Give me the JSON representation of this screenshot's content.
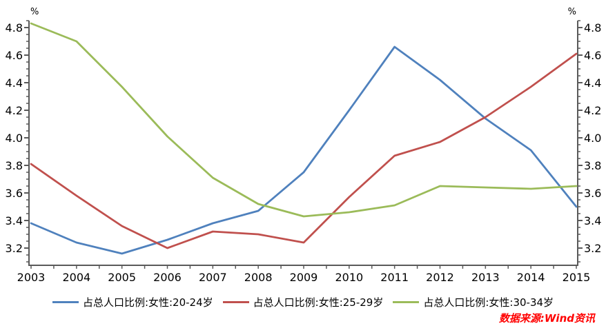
{
  "chart_data": {
    "type": "line",
    "title": "",
    "x": [
      2003,
      2004,
      2005,
      2006,
      2007,
      2008,
      2009,
      2010,
      2011,
      2012,
      2013,
      2014,
      2015
    ],
    "series": [
      {
        "name": "占总人口比例:女性:20-24岁",
        "color": "#4F81BD",
        "values": [
          3.38,
          3.24,
          3.16,
          3.26,
          3.38,
          3.47,
          3.75,
          4.2,
          4.66,
          4.42,
          4.14,
          3.91,
          3.5
        ]
      },
      {
        "name": "占总人口比例:女性:25-29岁",
        "color": "#C0504D",
        "values": [
          3.81,
          3.58,
          3.36,
          3.2,
          3.32,
          3.3,
          3.24,
          3.57,
          3.87,
          3.97,
          4.15,
          4.37,
          4.61
        ]
      },
      {
        "name": "占总人口比例:女性:30-34岁",
        "color": "#9BBB59",
        "values": [
          4.83,
          4.7,
          4.37,
          4.01,
          3.71,
          3.52,
          3.43,
          3.46,
          3.51,
          3.65,
          3.64,
          3.63,
          3.65
        ]
      }
    ],
    "y_axis": {
      "unit_label": "%",
      "min": 3.075,
      "max": 4.85,
      "major_tick_start": 3.2,
      "major_tick_end": 4.8,
      "major_tick_step": 0.2,
      "minor_tick_step": 0.05,
      "sides": [
        "left",
        "right"
      ]
    },
    "x_axis": {
      "tick_step_years": 0.5
    },
    "legend_position": "bottom",
    "grid": false,
    "axis_color": "#595959",
    "label_color": "#000000"
  },
  "footer": {
    "source_label": "数据来源:Wind资讯",
    "color": "#FF0000"
  }
}
